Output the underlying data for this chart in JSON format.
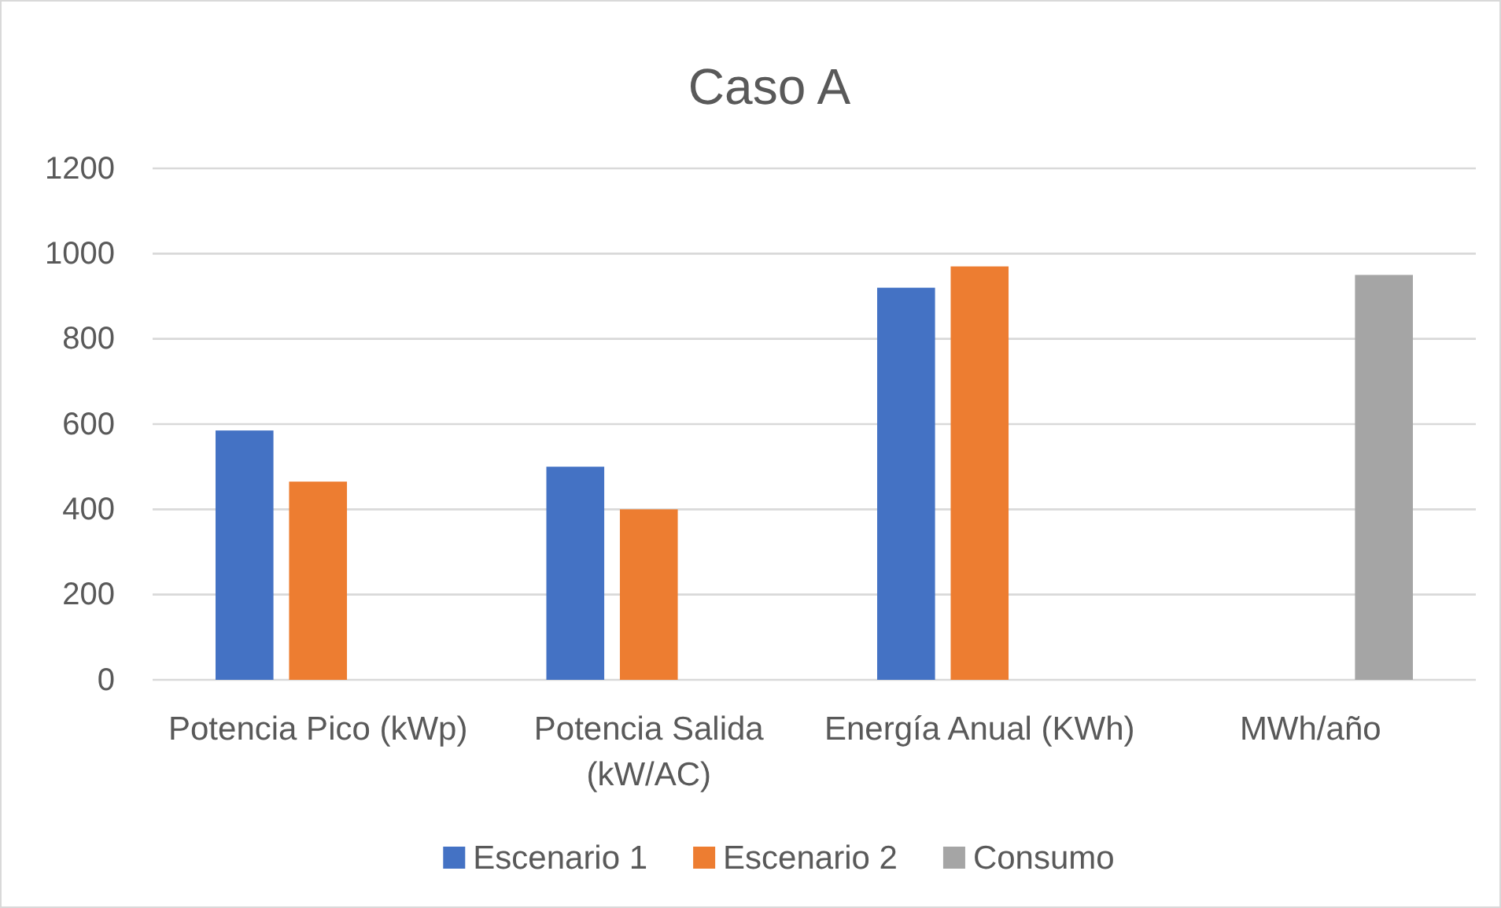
{
  "chart_data": {
    "type": "bar",
    "title": "Caso A",
    "categories": [
      "Potencia Pico (kWp)",
      "Potencia Salida (kW/AC)",
      "Energía Anual (KWh)",
      "MWh/año"
    ],
    "series": [
      {
        "name": "Escenario 1",
        "color": "#4472c4",
        "values": [
          585,
          500,
          920,
          null
        ]
      },
      {
        "name": "Escenario 2",
        "color": "#ed7d31",
        "values": [
          465,
          400,
          970,
          null
        ]
      },
      {
        "name": "Consumo",
        "color": "#a5a5a5",
        "values": [
          null,
          null,
          null,
          950
        ]
      }
    ],
    "ylim": [
      0,
      1200
    ],
    "yticks": [
      0,
      200,
      400,
      600,
      800,
      1000,
      1200
    ],
    "grid": "y",
    "legend": "bottom"
  }
}
